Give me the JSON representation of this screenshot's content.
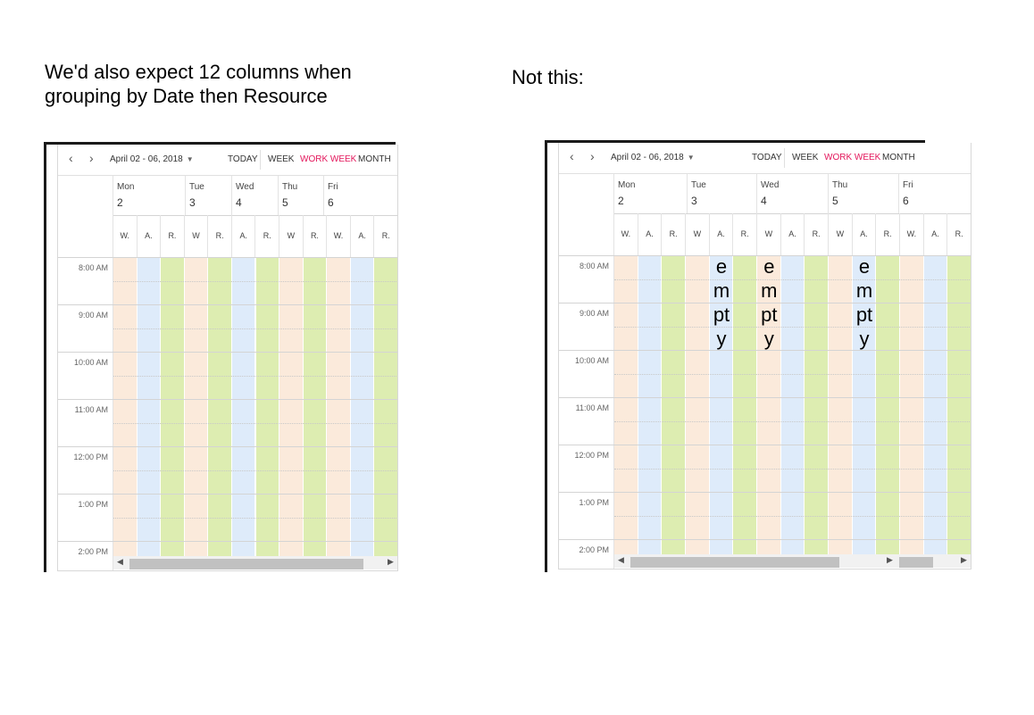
{
  "captions": {
    "left_line1": "We'd also expect 12 columns when",
    "left_line2": "grouping by Date then Resource",
    "right": "Not this:"
  },
  "scheduler": {
    "date_range": "April 02 - 06, 2018",
    "views": [
      "TODAY",
      "WEEK",
      "WORK WEEK",
      "MONTH"
    ],
    "active_view": "WORK WEEK",
    "days": [
      {
        "name": "Mon",
        "num": "2"
      },
      {
        "name": "Tue",
        "num": "3"
      },
      {
        "name": "Wed",
        "num": "4"
      },
      {
        "name": "Thu",
        "num": "5"
      },
      {
        "name": "Fri",
        "num": "6"
      }
    ],
    "times": [
      "8:00 AM",
      "9:00 AM",
      "10:00 AM",
      "11:00 AM",
      "12:00 PM",
      "1:00 PM",
      "2:00 PM"
    ],
    "resource_colors": {
      "W": "#fbeadb",
      "A": "#deebfa",
      "R": "#ddedb1"
    },
    "left_resources": [
      "W.",
      "A.",
      "R.",
      "W",
      "R.",
      "A.",
      "R.",
      "W",
      "R.",
      "W.",
      "A.",
      "R."
    ],
    "right_resources": [
      "W.",
      "A.",
      "R.",
      "W",
      "A.",
      "R.",
      "W",
      "A.",
      "R.",
      "W",
      "A.",
      "R.",
      "W.",
      "A.",
      "R."
    ],
    "empty_label": "empty"
  }
}
